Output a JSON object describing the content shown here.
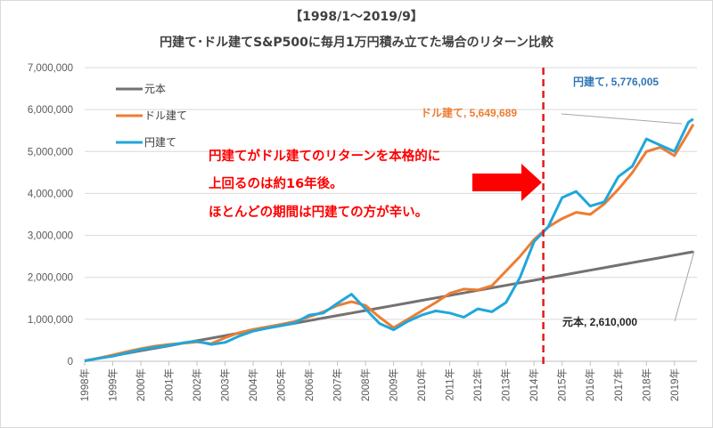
{
  "chart_data": {
    "type": "line",
    "title": "【1998/1～2019/9】",
    "subtitle": "円建て･ドル建てS&P500に毎月1万円積み立てた場合のリターン比較",
    "xlabel": "",
    "ylabel": "",
    "ylim": [
      0,
      7000000
    ],
    "yticks": [
      "0",
      "1,000,000",
      "2,000,000",
      "3,000,000",
      "4,000,000",
      "5,000,000",
      "6,000,000",
      "7,000,000"
    ],
    "xticks": [
      "1998年",
      "1999年",
      "2000年",
      "2001年",
      "2002年",
      "2003年",
      "2004年",
      "2005年",
      "2006年",
      "2007年",
      "2008年",
      "2009年",
      "2010年",
      "2011年",
      "2012年",
      "2013年",
      "2014年",
      "2015年",
      "2016年",
      "2017年",
      "2018年",
      "2019年"
    ],
    "grid": true,
    "legend": "top-left",
    "x": [
      1998.0,
      1998.5,
      1999.0,
      1999.5,
      2000.0,
      2000.5,
      2001.0,
      2001.5,
      2002.0,
      2002.5,
      2003.0,
      2003.5,
      2004.0,
      2004.5,
      2005.0,
      2005.5,
      2006.0,
      2006.5,
      2007.0,
      2007.5,
      2008.0,
      2008.5,
      2009.0,
      2009.5,
      2010.0,
      2010.5,
      2011.0,
      2011.5,
      2012.0,
      2012.5,
      2013.0,
      2013.5,
      2014.0,
      2014.5,
      2015.0,
      2015.5,
      2016.0,
      2016.5,
      2017.0,
      2017.5,
      2018.0,
      2018.5,
      2019.0,
      2019.5,
      2019.67
    ],
    "series": [
      {
        "name": "元本",
        "color": "#767171",
        "values": [
          10000,
          70000,
          130000,
          190000,
          250000,
          310000,
          370000,
          430000,
          490000,
          550000,
          610000,
          670000,
          730000,
          790000,
          850000,
          910000,
          970000,
          1030000,
          1090000,
          1150000,
          1210000,
          1270000,
          1330000,
          1390000,
          1450000,
          1510000,
          1570000,
          1630000,
          1690000,
          1750000,
          1810000,
          1870000,
          1930000,
          1990000,
          2050000,
          2110000,
          2170000,
          2230000,
          2290000,
          2350000,
          2410000,
          2470000,
          2530000,
          2590000,
          2610000
        ]
      },
      {
        "name": "ドル建て",
        "color": "#ed7d31",
        "values": [
          10000,
          75000,
          150000,
          230000,
          300000,
          360000,
          400000,
          430000,
          460000,
          420000,
          560000,
          680000,
          760000,
          820000,
          880000,
          950000,
          1060000,
          1180000,
          1330000,
          1420000,
          1330000,
          1050000,
          800000,
          1000000,
          1200000,
          1400000,
          1620000,
          1720000,
          1700000,
          1800000,
          2150000,
          2500000,
          2900000,
          3200000,
          3400000,
          3550000,
          3500000,
          3750000,
          4100000,
          4500000,
          5000000,
          5100000,
          4900000,
          5450000,
          5649689
        ]
      },
      {
        "name": "円建て",
        "color": "#1fa7db",
        "values": [
          10000,
          70000,
          120000,
          200000,
          280000,
          330000,
          380000,
          440000,
          480000,
          400000,
          450000,
          600000,
          720000,
          790000,
          850000,
          920000,
          1100000,
          1150000,
          1380000,
          1600000,
          1250000,
          900000,
          750000,
          950000,
          1100000,
          1200000,
          1150000,
          1050000,
          1250000,
          1180000,
          1400000,
          2000000,
          2850000,
          3200000,
          3900000,
          4050000,
          3700000,
          3800000,
          4400000,
          4650000,
          5300000,
          5150000,
          5000000,
          5700000,
          5776005
        ]
      }
    ],
    "annotations": {
      "callout_lines": [
        "円建てがドル建てのリターンを本格的に",
        "上回るのは約16年後。",
        "ほとんどの期間は円建ての方が辛い。"
      ],
      "marker_year": 2014.33,
      "end_labels": [
        {
          "series": "円建て",
          "text": "円建て, 5,776,005",
          "color": "#2e75b6"
        },
        {
          "series": "ドル建て",
          "text": "ドル建て, 5,649,689",
          "color": "#ed7d31"
        },
        {
          "series": "元本",
          "text": "元本, 2,610,000",
          "color": "#262626"
        }
      ]
    }
  }
}
